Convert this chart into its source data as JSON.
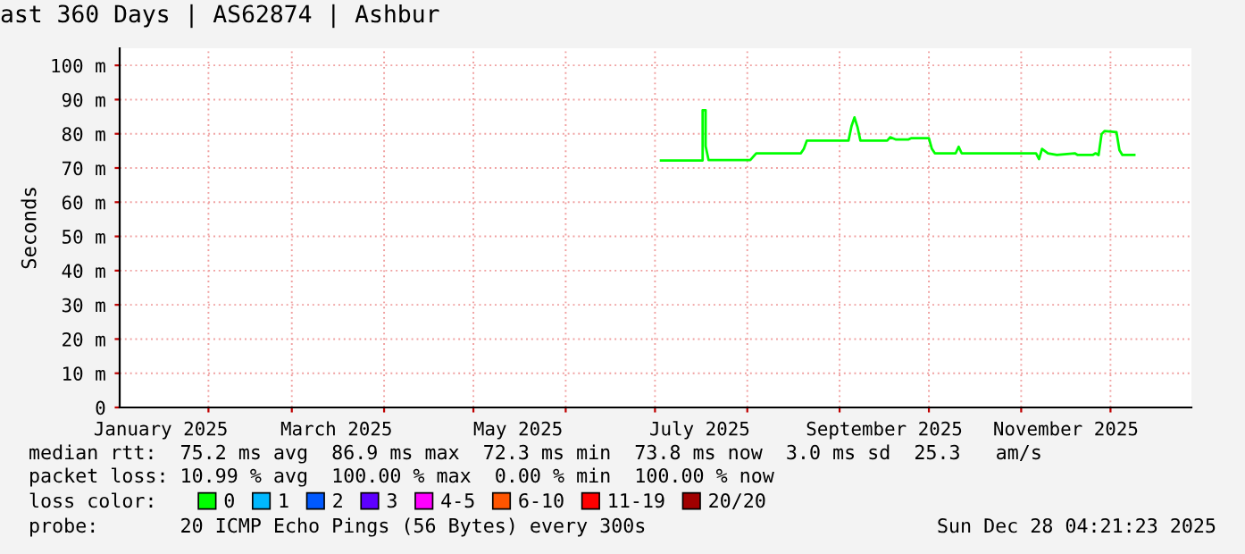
{
  "chart_data": {
    "type": "line",
    "title": "ast 360 Days | AS62874 | Ashbur",
    "ylabel": "Seconds",
    "x": [
      "2025-07-03",
      "2025-07-17",
      "2025-07-17",
      "2025-07-18",
      "2025-07-18",
      "2025-07-19",
      "2025-08-02",
      "2025-08-04",
      "2025-08-19",
      "2025-08-20",
      "2025-08-21",
      "2025-09-04",
      "2025-09-05",
      "2025-09-06",
      "2025-09-07",
      "2025-09-08",
      "2025-09-17",
      "2025-09-18",
      "2025-09-20",
      "2025-09-24",
      "2025-09-25",
      "2025-10-01",
      "2025-10-02",
      "2025-10-03",
      "2025-10-10",
      "2025-10-11",
      "2025-10-12",
      "2025-11-06",
      "2025-11-07",
      "2025-11-08",
      "2025-11-10",
      "2025-11-13",
      "2025-11-19",
      "2025-11-20",
      "2025-11-25",
      "2025-11-26",
      "2025-11-27",
      "2025-11-28",
      "2025-11-29",
      "2025-12-03",
      "2025-12-04",
      "2025-12-05",
      "2025-12-09"
    ],
    "series": [
      {
        "name": "0",
        "color": "#00ff00",
        "values": [
          72.2,
          72.2,
          86.9,
          86.9,
          76.4,
          72.3,
          72.3,
          74.3,
          74.3,
          75.6,
          78,
          78,
          82.2,
          84.8,
          82,
          78,
          78,
          79,
          78.3,
          78.3,
          78.7,
          78.7,
          75.6,
          74.3,
          74.3,
          76.2,
          74.3,
          74.3,
          72.6,
          75.6,
          74.3,
          73.8,
          74.3,
          73.8,
          73.8,
          74.3,
          73.8,
          79.9,
          80.8,
          80.5,
          75.2,
          73.8,
          73.8
        ]
      },
      {
        "name": "1",
        "color": "#00b8ff",
        "values": [
          null,
          null,
          null,
          null,
          null,
          null,
          null,
          null,
          null,
          null,
          null,
          null,
          null,
          null,
          null,
          null,
          null,
          null,
          null,
          null,
          null,
          null,
          null,
          null,
          null,
          null,
          null,
          null,
          null,
          null,
          null,
          null,
          null,
          null,
          null,
          null,
          null,
          null,
          null,
          null,
          null,
          null,
          null
        ]
      },
      {
        "name": "2",
        "color": "#0059ff",
        "values": [
          null,
          null,
          null,
          null,
          null,
          null,
          null,
          null,
          null,
          null,
          null,
          null,
          null,
          null,
          null,
          null,
          null,
          null,
          null,
          null,
          null,
          null,
          null,
          null,
          null,
          null,
          null,
          null,
          null,
          null,
          null,
          null,
          null,
          null,
          null,
          null,
          null,
          null,
          null,
          null,
          null,
          null,
          null
        ]
      },
      {
        "name": "3",
        "color": "#5e00ff",
        "values": [
          null,
          null,
          null,
          null,
          null,
          null,
          null,
          null,
          null,
          null,
          null,
          null,
          null,
          null,
          null,
          null,
          null,
          null,
          null,
          null,
          null,
          null,
          null,
          null,
          null,
          null,
          null,
          null,
          null,
          null,
          null,
          null,
          null,
          null,
          null,
          null,
          null,
          null,
          null,
          null,
          null,
          null,
          null
        ]
      },
      {
        "name": "4-5",
        "color": "#ff00ff",
        "values": [
          null,
          null,
          null,
          null,
          null,
          null,
          null,
          null,
          null,
          null,
          null,
          null,
          null,
          null,
          null,
          null,
          null,
          null,
          null,
          null,
          null,
          null,
          null,
          null,
          null,
          null,
          null,
          null,
          null,
          null,
          null,
          null,
          null,
          null,
          null,
          null,
          null,
          null,
          null,
          null,
          null,
          null,
          null
        ]
      },
      {
        "name": "6-10",
        "color": "#ff5500",
        "values": [
          null,
          null,
          null,
          null,
          null,
          null,
          null,
          null,
          null,
          null,
          null,
          null,
          null,
          null,
          null,
          null,
          null,
          null,
          null,
          null,
          null,
          null,
          null,
          null,
          null,
          null,
          null,
          null,
          null,
          null,
          null,
          null,
          null,
          null,
          null,
          null,
          null,
          null,
          null,
          null,
          null,
          null,
          null
        ]
      },
      {
        "name": "11-19",
        "color": "#ff0000",
        "values": [
          null,
          null,
          null,
          null,
          null,
          null,
          null,
          null,
          null,
          null,
          null,
          null,
          null,
          null,
          null,
          null,
          null,
          null,
          null,
          null,
          null,
          null,
          null,
          null,
          null,
          null,
          null,
          null,
          null,
          null,
          null,
          null,
          null,
          null,
          null,
          null,
          null,
          null,
          null,
          null,
          null,
          null,
          null
        ]
      },
      {
        "name": "20/20",
        "color": "#a10000",
        "values": [
          null,
          null,
          null,
          null,
          null,
          null,
          null,
          null,
          null,
          null,
          null,
          null,
          null,
          null,
          null,
          null,
          null,
          null,
          null,
          null,
          null,
          null,
          null,
          null,
          null,
          null,
          null,
          null,
          null,
          null,
          null,
          null,
          null,
          null,
          null,
          null,
          null,
          null,
          null,
          null,
          null,
          null,
          null
        ]
      }
    ],
    "xlim": [
      "2025-01-02T04:21",
      "2025-12-28T04:21"
    ],
    "xticks": [
      {
        "value": "2025-01-16",
        "label": "January 2025"
      },
      {
        "value": "2025-02-01",
        "label": null
      },
      {
        "value": "2025-03-01",
        "label": null
      },
      {
        "value": "2025-03-16",
        "label": "March 2025"
      },
      {
        "value": "2025-04-01",
        "label": null
      },
      {
        "value": "2025-05-01",
        "label": null
      },
      {
        "value": "2025-05-16",
        "label": "May 2025"
      },
      {
        "value": "2025-06-01",
        "label": null
      },
      {
        "value": "2025-07-01",
        "label": null
      },
      {
        "value": "2025-07-16",
        "label": "July 2025"
      },
      {
        "value": "2025-08-01",
        "label": null
      },
      {
        "value": "2025-09-01",
        "label": null
      },
      {
        "value": "2025-09-16",
        "label": "September 2025"
      },
      {
        "value": "2025-10-01",
        "label": null
      },
      {
        "value": "2025-11-01",
        "label": null
      },
      {
        "value": "2025-11-16",
        "label": "November 2025"
      },
      {
        "value": "2025-12-01",
        "label": null
      }
    ],
    "ylim": [
      0,
      105
    ],
    "yticks": [
      0,
      {
        "value": 10,
        "label": "10 m"
      },
      {
        "value": 20,
        "label": "20 m"
      },
      {
        "value": 30,
        "label": "30 m"
      },
      {
        "value": 40,
        "label": "40 m"
      },
      {
        "value": 50,
        "label": "50 m"
      },
      {
        "value": 60,
        "label": "60 m"
      },
      {
        "value": 70,
        "label": "70 m"
      },
      {
        "value": 80,
        "label": "80 m"
      },
      {
        "value": 90,
        "label": "90 m"
      },
      {
        "value": 100,
        "label": "100 m"
      }
    ],
    "grid": true,
    "legend": "bottom",
    "annotations": [
      "median rtt:  75.2 ms avg  86.9 ms max  72.3 ms min  73.8 ms now  3.0 ms sd  25.3   am/s",
      "packet loss: 10.99 % avg  100.00 % max  0.00 % min  100.00 % now",
      "loss color:",
      "probe:       20 ICMP Echo Pings (56 Bytes) every 300s",
      "Sun Dec 28 04:21:23 2025"
    ]
  }
}
